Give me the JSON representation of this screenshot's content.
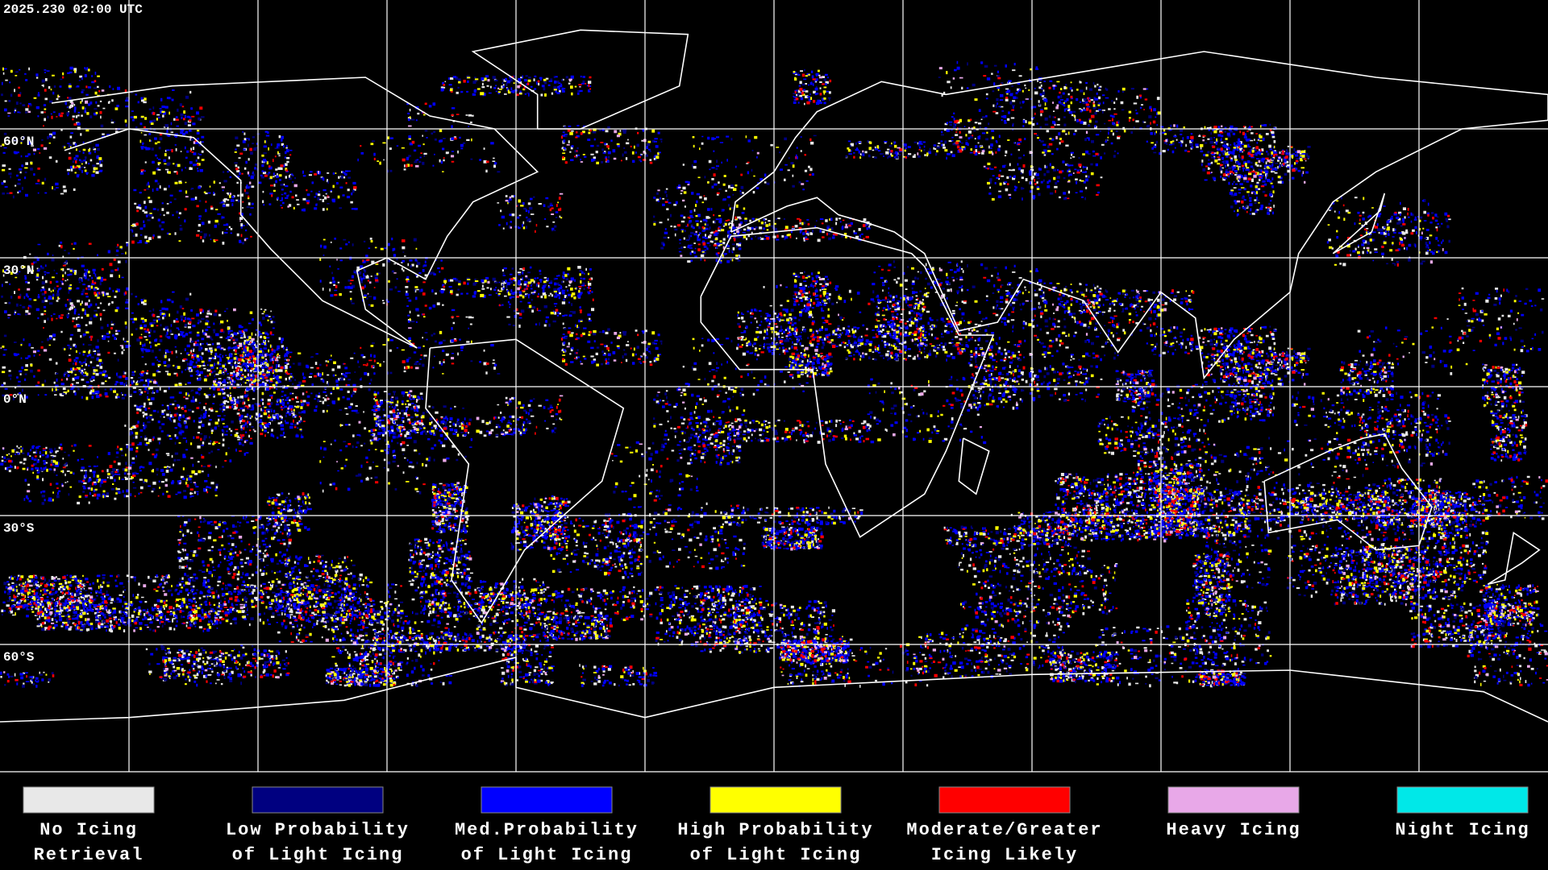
{
  "header": {
    "timestamp": "2025.230 02:00 UTC"
  },
  "latitude_labels": [
    "60°N",
    "30°N",
    "0°N",
    "30°S",
    "60°S"
  ],
  "legend": [
    {
      "color": "#e8e8e8",
      "label_lines": [
        "No Icing",
        "Retrieval"
      ]
    },
    {
      "color": "#000080",
      "label_lines": [
        "Low Probability",
        "of Light Icing"
      ]
    },
    {
      "color": "#0000ff",
      "label_lines": [
        "Med.Probability",
        "of Light Icing"
      ]
    },
    {
      "color": "#ffff00",
      "label_lines": [
        "High Probability",
        "of Light Icing"
      ]
    },
    {
      "color": "#ff0000",
      "label_lines": [
        "Moderate/Greater",
        "Icing Likely"
      ]
    },
    {
      "color": "#e8a8e8",
      "label_lines": [
        "Heavy Icing"
      ]
    },
    {
      "color": "#00e8e8",
      "label_lines": [
        "Night Icing"
      ]
    }
  ]
}
